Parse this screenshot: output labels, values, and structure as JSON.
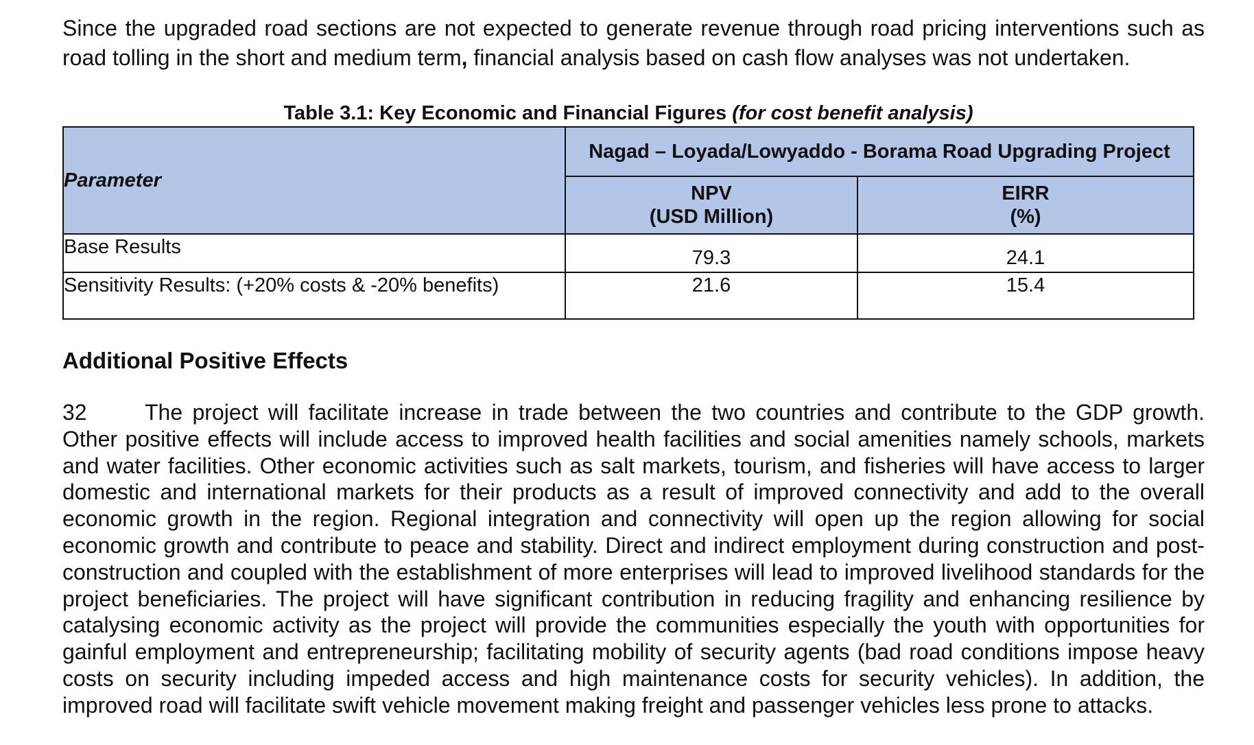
{
  "intro": {
    "part1": "Since the upgraded road sections are not expected to generate revenue through road pricing interventions such as road tolling in the short and medium term",
    "comma": ",",
    "part2": " financial analysis based on cash flow analyses was not undertaken."
  },
  "table": {
    "caption_bold": "Table 3.1: Key Economic and Financial Figures ",
    "caption_italic": "(for cost benefit analysis)",
    "header_parameter": "Parameter",
    "header_project": "Nagad – Loyada/Lowyaddo - Borama Road Upgrading Project",
    "col_npv_line1": "NPV",
    "col_npv_line2": "(USD Million)",
    "col_eirr_line1": "EIRR",
    "col_eirr_line2": "(%)",
    "rows": [
      {
        "label": "Base Results",
        "npv": "79.3",
        "eirr": "24.1"
      },
      {
        "label": "Sensitivity Results: (+20% costs & -20% benefits)",
        "npv": "21.6",
        "eirr": "15.4"
      }
    ]
  },
  "section": {
    "heading": "Additional Positive Effects",
    "paragraph_number": "32",
    "paragraph_text": "The project will facilitate increase in trade between the two countries and contribute to the GDP growth. Other positive effects will include access to improved health facilities and social amenities namely schools, markets and water facilities. Other economic activities such as salt markets, tourism, and fisheries will have access to larger domestic and international markets for their products as a result of improved connectivity and add to the overall economic growth in the region. Regional integration and connectivity will open up the region allowing for social economic growth and contribute to peace and stability. Direct and indirect employment during construction and post- construction and coupled with the establishment of more enterprises will lead to improved livelihood standards for the project beneficiaries. The project will have significant contribution in reducing fragility and enhancing resilience by catalysing economic activity as the project will provide the communities especially the youth with opportunities for gainful employment and entrepreneurship; facilitating mobility of security agents (bad road conditions impose heavy costs on security including impeded access and high maintenance costs for security vehicles). In addition, the improved road will facilitate swift vehicle movement making freight and passenger vehicles less prone to attacks."
  }
}
